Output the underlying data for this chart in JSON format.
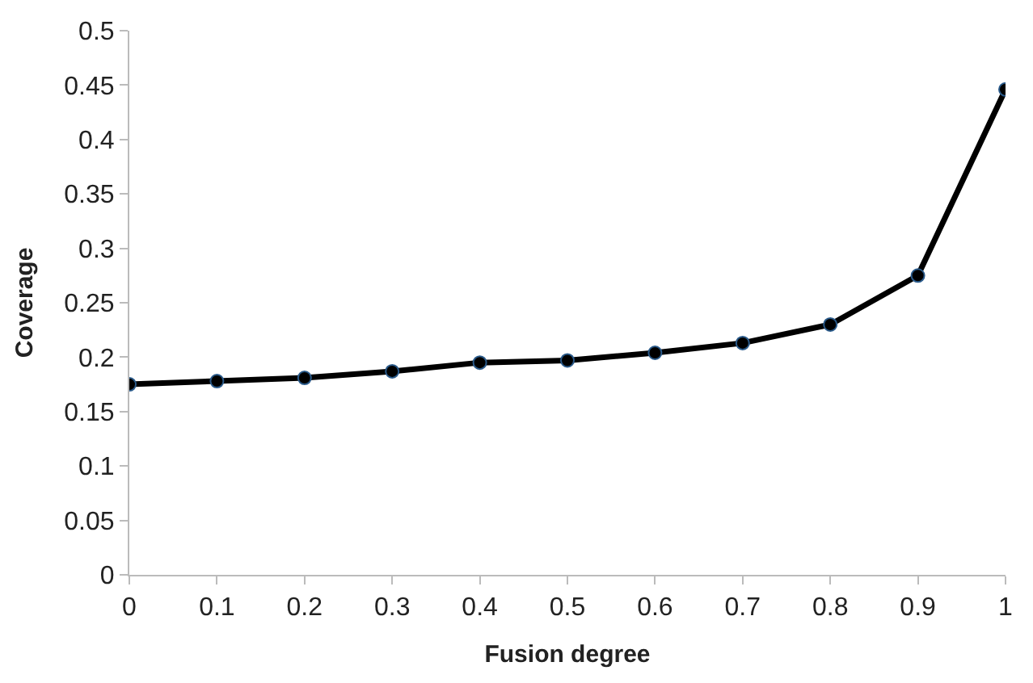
{
  "chart_data": {
    "type": "line",
    "xlabel": "Fusion degree",
    "ylabel": "Coverage",
    "x": [
      0,
      0.1,
      0.2,
      0.3,
      0.4,
      0.5,
      0.6,
      0.7,
      0.8,
      0.9,
      1
    ],
    "series": [
      {
        "color": "#000000",
        "values": [
          0.175,
          0.178,
          0.181,
          0.187,
          0.195,
          0.197,
          0.204,
          0.213,
          0.23,
          0.275,
          0.446
        ]
      }
    ],
    "xlim": [
      0,
      1
    ],
    "xticks": [
      0,
      0.1,
      0.2,
      0.3,
      0.4,
      0.5,
      0.6,
      0.7,
      0.8,
      0.9,
      1
    ],
    "ylim": [
      0,
      0.5
    ],
    "yticks": [
      0,
      0.05,
      0.1,
      0.15,
      0.2,
      0.25,
      0.3,
      0.35,
      0.4,
      0.45,
      0.5
    ],
    "marker": "circle",
    "line_style": "solid"
  }
}
